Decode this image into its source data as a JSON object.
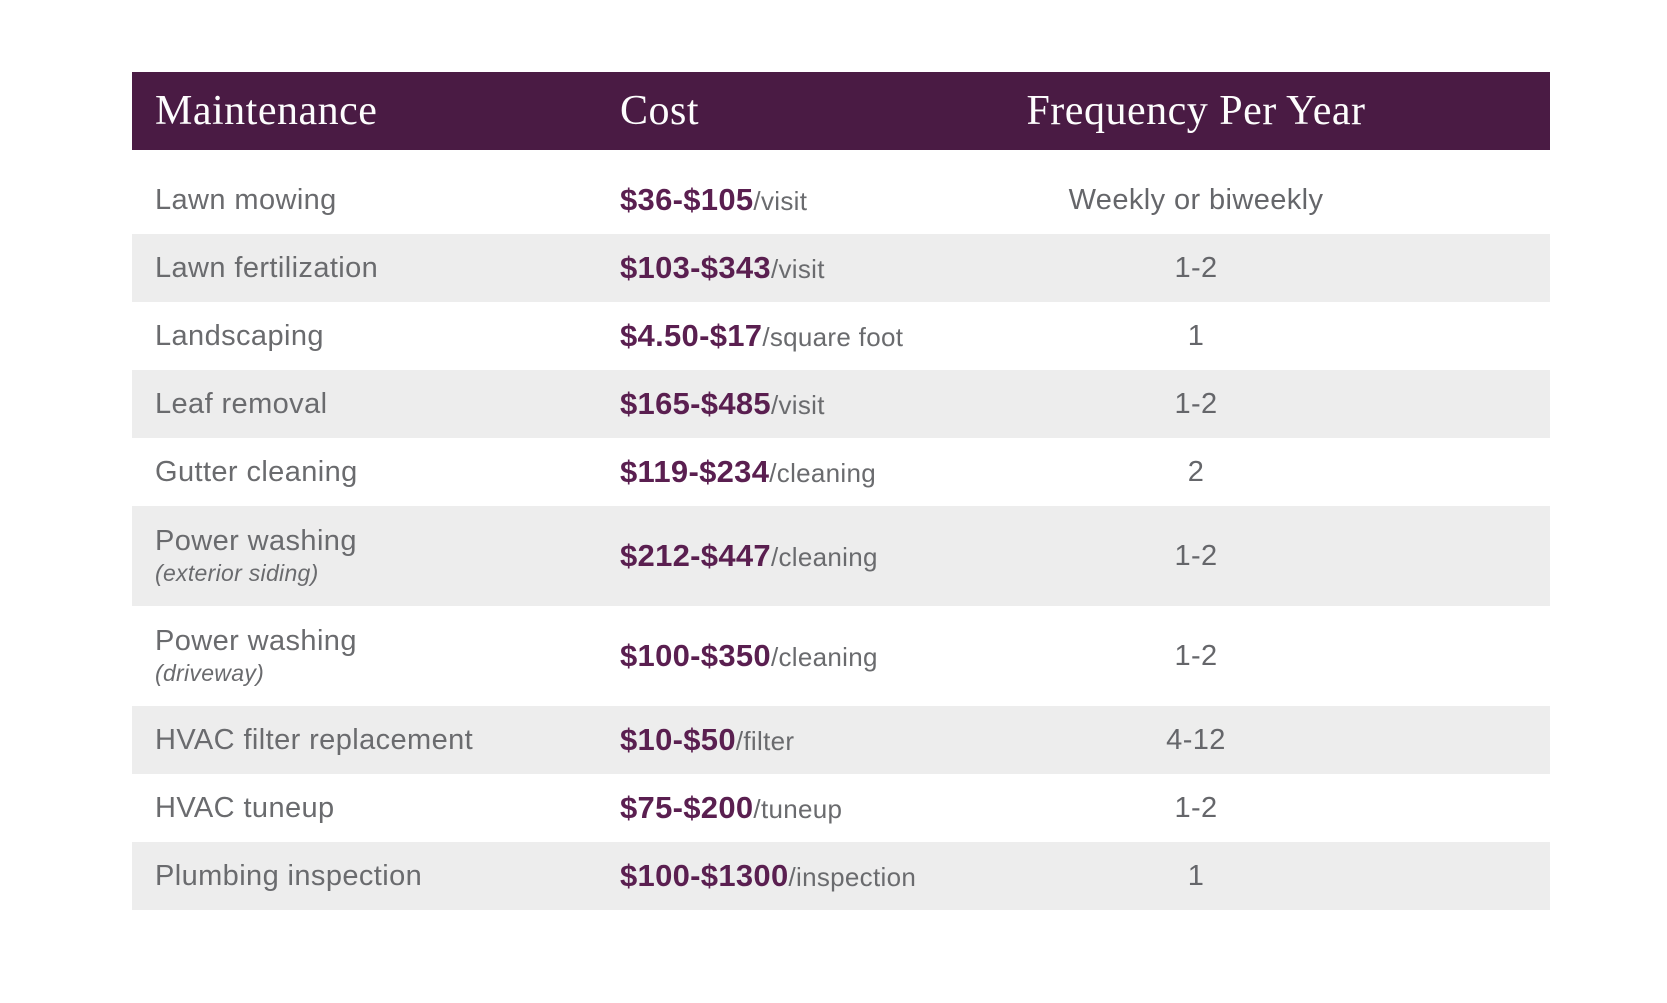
{
  "chart_data": {
    "type": "table",
    "columns": [
      "Maintenance",
      "Cost",
      "Frequency Per Year"
    ],
    "rows": [
      {
        "maintenance": "Lawn mowing",
        "sublabel": "",
        "cost_value": "$36-$105",
        "cost_unit": "/visit",
        "frequency": "Weekly or biweekly"
      },
      {
        "maintenance": "Lawn fertilization",
        "sublabel": "",
        "cost_value": "$103-$343",
        "cost_unit": "/visit",
        "frequency": "1-2"
      },
      {
        "maintenance": "Landscaping",
        "sublabel": "",
        "cost_value": "$4.50-$17",
        "cost_unit": "/square foot",
        "frequency": "1"
      },
      {
        "maintenance": "Leaf removal",
        "sublabel": "",
        "cost_value": "$165-$485",
        "cost_unit": "/visit",
        "frequency": "1-2"
      },
      {
        "maintenance": "Gutter cleaning",
        "sublabel": "",
        "cost_value": "$119-$234",
        "cost_unit": "/cleaning",
        "frequency": "2"
      },
      {
        "maintenance": "Power washing",
        "sublabel": "(exterior siding)",
        "cost_value": "$212-$447",
        "cost_unit": "/cleaning",
        "frequency": "1-2"
      },
      {
        "maintenance": "Power washing",
        "sublabel": "(driveway)",
        "cost_value": "$100-$350",
        "cost_unit": "/cleaning",
        "frequency": "1-2"
      },
      {
        "maintenance": "HVAC filter replacement",
        "sublabel": "",
        "cost_value": "$10-$50",
        "cost_unit": "/filter",
        "frequency": "4-12"
      },
      {
        "maintenance": "HVAC tuneup",
        "sublabel": "",
        "cost_value": "$75-$200",
        "cost_unit": "/tuneup",
        "frequency": "1-2"
      },
      {
        "maintenance": "Plumbing inspection",
        "sublabel": "",
        "cost_value": "$100-$1300",
        "cost_unit": "/inspection",
        "frequency": "1"
      }
    ]
  },
  "colors": {
    "header_bg": "#4a1b44",
    "header_text": "#fdfdfd",
    "price_text": "#5a1f50",
    "body_text": "#6a6b6e",
    "stripe_bg": "#ededed"
  }
}
